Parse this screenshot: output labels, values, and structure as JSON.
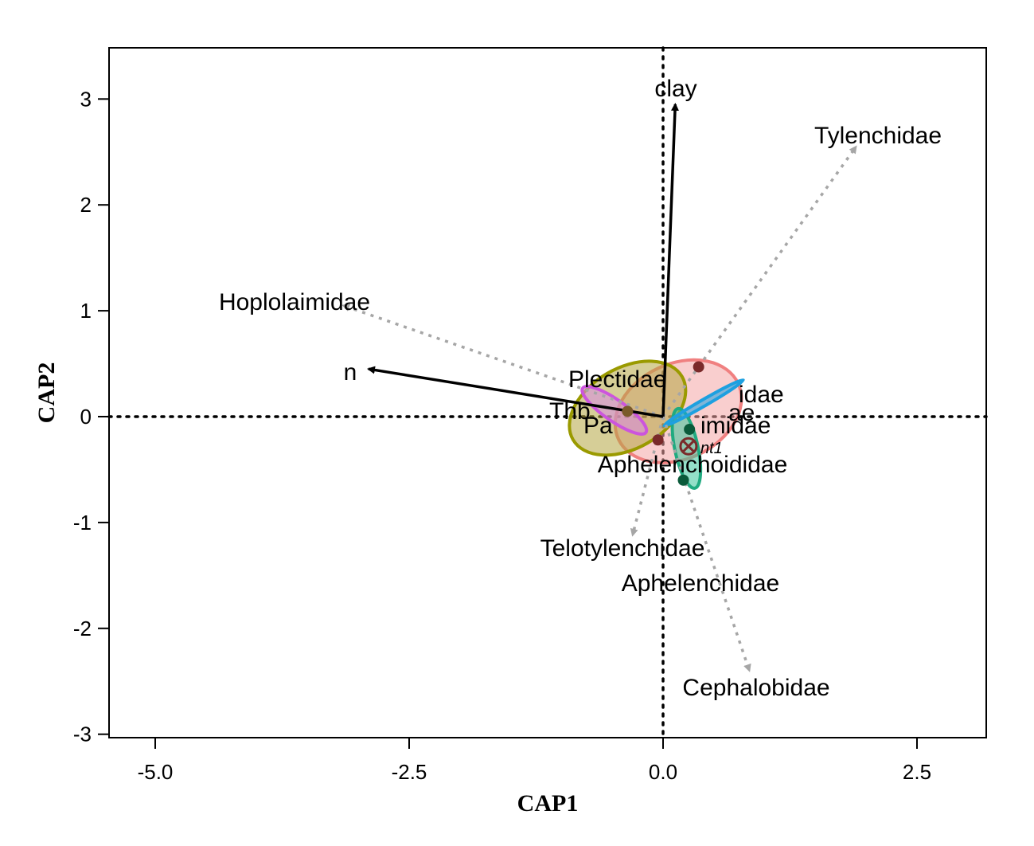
{
  "chart_data": {
    "type": "scatter",
    "subtype": "CAP ordination biplot",
    "xlabel": "CAP1",
    "ylabel": "CAP2",
    "xlim": [
      -5.5,
      3.2
    ],
    "ylim": [
      -3.05,
      3.5
    ],
    "x_ticks": [
      {
        "value": -5.0,
        "label": "-5.0"
      },
      {
        "value": -2.5,
        "label": "-2.5"
      },
      {
        "value": 0.0,
        "label": "0.0"
      },
      {
        "value": 2.5,
        "label": "2.5"
      }
    ],
    "y_ticks": [
      {
        "value": -3,
        "label": "-3"
      },
      {
        "value": -2,
        "label": "-2"
      },
      {
        "value": -1,
        "label": "-1"
      },
      {
        "value": 0,
        "label": "0"
      },
      {
        "value": 1,
        "label": "1"
      },
      {
        "value": 2,
        "label": "2"
      },
      {
        "value": 3,
        "label": "3"
      }
    ],
    "reference_lines": {
      "x0": true,
      "y0": true,
      "style": "dotted"
    },
    "env_arrow_color": "#000000",
    "species_arrow_color": "#a6a6a6",
    "env_vectors": [
      {
        "name": "clay",
        "x": 0.12,
        "y": 2.95
      },
      {
        "name": "n",
        "x": -2.9,
        "y": 0.45
      }
    ],
    "species_vectors": [
      {
        "name": "Tylenchidae",
        "x": 1.9,
        "y": 2.55
      },
      {
        "name": "Hoplolaimidae",
        "x": -3.15,
        "y": 1.05
      },
      {
        "name": "Telotylenchidae",
        "x": -0.3,
        "y": -1.12
      },
      {
        "name": "Cephalobidae",
        "x": 0.85,
        "y": -2.4
      },
      {
        "name": "Aphelenchidae",
        "x": 0.85,
        "y": -2.4
      },
      {
        "name": "Aphelenchoididae",
        "x": 0.0,
        "y": -0.3
      },
      {
        "name": "Plectidae",
        "x": -0.65,
        "y": 0.35
      },
      {
        "name": "Thb",
        "x": -0.6,
        "y": 0.05
      },
      {
        "name": "Pa",
        "x": -0.4,
        "y": -0.05
      },
      {
        "name": "idae",
        "x": 0.75,
        "y": 0.2
      },
      {
        "name": "imidae",
        "x": 0.5,
        "y": -0.05
      },
      {
        "name": "ae",
        "x": 0.9,
        "y": 0.05
      }
    ],
    "species_label_text": {
      "Tylenchidae": "Tylenchidae",
      "Hoplolaimidae": "Hoplolaimidae",
      "Telotylenchidae": "Telotylenchidae",
      "Cephalobidae": "Cephalobidae",
      "Aphelenchidae": "Aphelenchidae",
      "Aphelenchoididae": "Aphelenchoididae",
      "Plectidae": "Plectidae",
      "Thb": "Thb",
      "Pa": "Pa",
      "idae": "idae",
      "imidae": "imidae",
      "ae": "ae"
    },
    "site_label": "nt1",
    "groups": [
      {
        "color": "#f08080",
        "fill": "#f4a6a6",
        "cx": 0.15,
        "cy": 0.05,
        "rx": 0.65,
        "ry": 0.45,
        "angle": 25
      },
      {
        "color": "#9a9a00",
        "fill": "#b5a542",
        "cx": -0.35,
        "cy": 0.08,
        "rx": 0.62,
        "ry": 0.38,
        "angle": 30
      },
      {
        "color": "#cc55dd",
        "fill": "#d88ae6",
        "cx": -0.48,
        "cy": 0.06,
        "rx": 0.38,
        "ry": 0.1,
        "angle": -35
      },
      {
        "color": "#20aa80",
        "fill": "#3cc49a",
        "cx": 0.23,
        "cy": -0.3,
        "rx": 0.4,
        "ry": 0.11,
        "angle": -78
      },
      {
        "color": "#1ea0e0",
        "fill": "#1ea0e0",
        "cx": 0.4,
        "cy": 0.13,
        "rx": 0.45,
        "ry": 0.03,
        "angle": 30
      }
    ],
    "points": [
      {
        "x": 0.35,
        "y": 0.47,
        "color": "#7a2a2a"
      },
      {
        "x": 0.2,
        "y": -0.6,
        "color": "#0a5a3a"
      },
      {
        "x": 0.26,
        "y": -0.12,
        "color": "#0a5a3a"
      },
      {
        "x": 0.25,
        "y": -0.28,
        "color": "#7a2a2a",
        "marker": "crossed-circle"
      },
      {
        "x": -0.05,
        "y": -0.22,
        "color": "#7a2a2a"
      },
      {
        "x": -0.35,
        "y": 0.05,
        "color": "#7a5a2a"
      }
    ]
  }
}
